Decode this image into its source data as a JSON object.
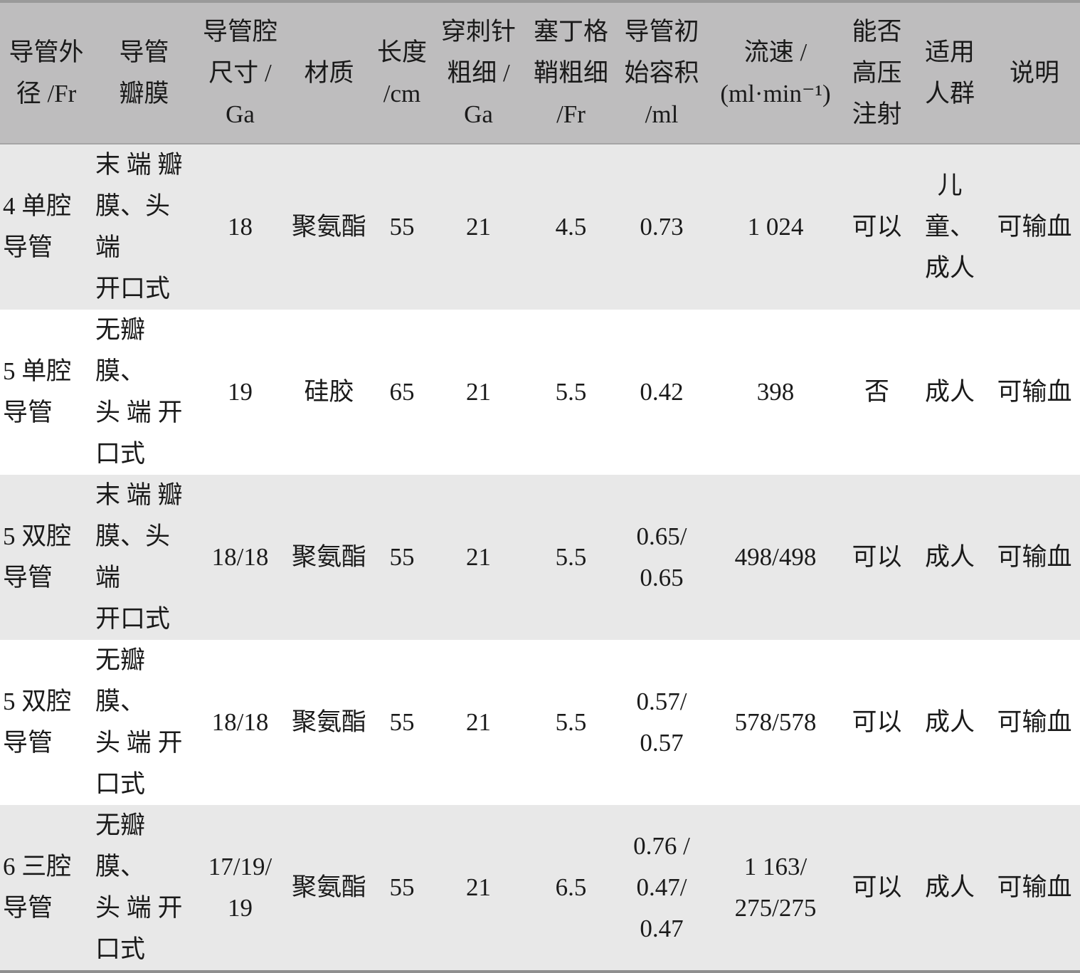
{
  "table": {
    "headers": [
      "导管外\n径 /Fr",
      "导管\n瓣膜",
      "导管腔\n尺寸 /\nGa",
      "材质",
      "长度\n/cm",
      "穿刺针\n粗细 /\nGa",
      "塞丁格\n鞘粗细\n/Fr",
      "导管初\n始容积\n/ml",
      "流速 /\n(ml·min⁻¹)",
      "能否\n高压\n注射",
      "适用\n人群",
      "说明"
    ],
    "rows": [
      [
        "4 单腔\n导管",
        "末 端 瓣\n膜、头端\n开口式",
        "18",
        "聚氨酯",
        "55",
        "21",
        "4.5",
        "0.73",
        "1 024",
        "可以",
        "儿童、\n成人",
        "可输血"
      ],
      [
        "5 单腔\n导管",
        "无瓣膜、\n头 端 开\n口式",
        "19",
        "硅胶",
        "65",
        "21",
        "5.5",
        "0.42",
        "398",
        "否",
        "成人",
        "可输血"
      ],
      [
        "5 双腔\n导管",
        "末 端 瓣\n膜、头端\n开口式",
        "18/18",
        "聚氨酯",
        "55",
        "21",
        "5.5",
        "0.65/\n0.65",
        "498/498",
        "可以",
        "成人",
        "可输血"
      ],
      [
        "5 双腔\n导管",
        "无瓣膜、\n头 端 开\n口式",
        "18/18",
        "聚氨酯",
        "55",
        "21",
        "5.5",
        "0.57/\n0.57",
        "578/578",
        "可以",
        "成人",
        "可输血"
      ],
      [
        "6 三腔\n导管",
        "无瓣膜、\n头 端 开\n口式",
        "17/19/\n19",
        "聚氨酯",
        "55",
        "21",
        "6.5",
        "0.76 /\n0.47/\n0.47",
        "1 163/\n275/275",
        "可以",
        "成人",
        "可输血"
      ]
    ]
  }
}
